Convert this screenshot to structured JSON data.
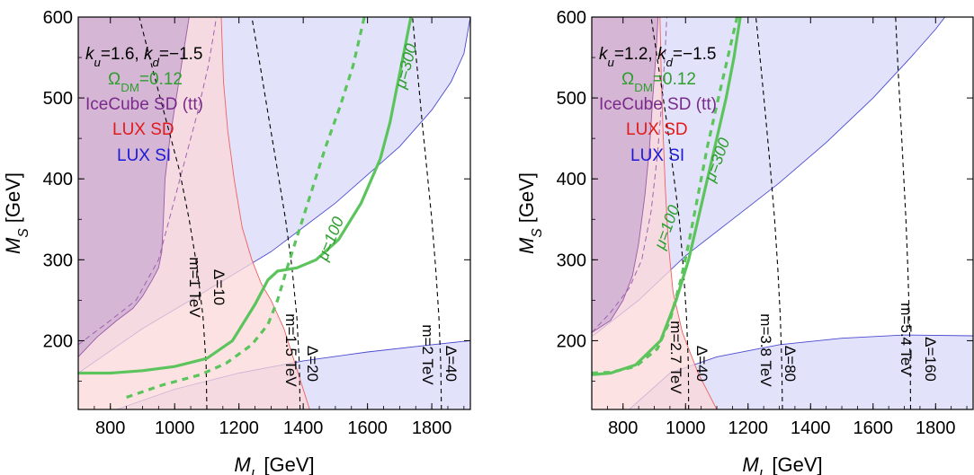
{
  "chart_data": [
    {
      "type": "line",
      "xlabel": "M_L [GeV]",
      "ylabel": "M_S [GeV]",
      "xlim": [
        700,
        1920
      ],
      "ylim": [
        115,
        600
      ],
      "xticks": [
        "800",
        "1000",
        "1200",
        "1400",
        "1600",
        "1800"
      ],
      "yticks": [
        "200",
        "300",
        "400",
        "500",
        "600"
      ],
      "grid": false,
      "legend": {
        "position": "top-left",
        "entries": [
          {
            "text": "k_u=1.6, k_d=−1.5",
            "color": "#000000"
          },
          {
            "text": "Ω_DM=0.12",
            "color": "#2e9e2e"
          },
          {
            "text": "IceCube SD (tt)",
            "color": "#7a2a8a"
          },
          {
            "text": "LUX SD",
            "color": "#e11a1a"
          },
          {
            "text": "LUX SI",
            "color": "#1a1ad6"
          }
        ]
      },
      "regions": {
        "icecube_sd": [
          [
            700,
            180
          ],
          [
            760,
            205
          ],
          [
            820,
            225
          ],
          [
            870,
            240
          ],
          [
            900,
            255
          ],
          [
            930,
            275
          ],
          [
            950,
            290
          ],
          [
            960,
            310
          ],
          [
            965,
            350
          ],
          [
            970,
            400
          ],
          [
            985,
            450
          ],
          [
            1005,
            500
          ],
          [
            1025,
            550
          ],
          [
            1045,
            600
          ],
          [
            700,
            600
          ]
        ],
        "lux_sd": [
          [
            700,
            115
          ],
          [
            1420,
            115
          ],
          [
            1380,
            165
          ],
          [
            1340,
            215
          ],
          [
            1300,
            250
          ],
          [
            1270,
            270
          ],
          [
            1240,
            300
          ],
          [
            1210,
            340
          ],
          [
            1185,
            400
          ],
          [
            1165,
            460
          ],
          [
            1152,
            520
          ],
          [
            1145,
            600
          ],
          [
            700,
            600
          ]
        ],
        "lux_si_upper": [
          [
            700,
            160
          ],
          [
            900,
            215
          ],
          [
            1100,
            262
          ],
          [
            1300,
            310
          ],
          [
            1500,
            370
          ],
          [
            1700,
            440
          ],
          [
            1800,
            485
          ],
          [
            1860,
            520
          ],
          [
            1900,
            555
          ],
          [
            1920,
            600
          ],
          [
            700,
            600
          ]
        ],
        "lux_si_lower": [
          [
            820,
            115
          ],
          [
            1000,
            140
          ],
          [
            1200,
            160
          ],
          [
            1400,
            175
          ],
          [
            1600,
            186
          ],
          [
            1800,
            195
          ],
          [
            1920,
            200
          ],
          [
            1920,
            115
          ]
        ]
      },
      "series": [
        {
          "name": "m=1 TeV",
          "style": "dashed",
          "color": "#000000",
          "points": [
            [
              1100,
              115
            ],
            [
              1098,
              170
            ],
            [
              1088,
              230
            ],
            [
              1070,
              290
            ],
            [
              1045,
              350
            ],
            [
              1015,
              410
            ],
            [
              975,
              470
            ],
            [
              935,
              530
            ],
            [
              890,
              600
            ]
          ]
        },
        {
          "name": "m=1.5 TeV",
          "style": "dashed",
          "color": "#000000",
          "points": [
            [
              1390,
              115
            ],
            [
              1388,
              170
            ],
            [
              1380,
              230
            ],
            [
              1365,
              290
            ],
            [
              1345,
              350
            ],
            [
              1320,
              410
            ],
            [
              1295,
              470
            ],
            [
              1268,
              535
            ],
            [
              1240,
              600
            ]
          ]
        },
        {
          "name": "m=2 TeV",
          "style": "dashed",
          "color": "#000000",
          "points": [
            [
              1830,
              115
            ],
            [
              1828,
              170
            ],
            [
              1822,
              230
            ],
            [
              1812,
              290
            ],
            [
              1800,
              350
            ],
            [
              1785,
              410
            ],
            [
              1770,
              470
            ],
            [
              1755,
              535
            ],
            [
              1740,
              600
            ]
          ]
        },
        {
          "name": "IceCube SD boundary",
          "style": "thin",
          "color": "#a060b0",
          "points": [
            [
              700,
              195
            ],
            [
              800,
              225
            ],
            [
              880,
              250
            ],
            [
              950,
              300
            ],
            [
              990,
              360
            ],
            [
              1030,
              420
            ],
            [
              1070,
              480
            ],
            [
              1105,
              540
            ],
            [
              1130,
              600
            ]
          ]
        },
        {
          "name": "μ=300",
          "style": "solid",
          "color": "#5cc45c",
          "points": [
            [
              700,
              160
            ],
            [
              800,
              160
            ],
            [
              900,
              163
            ],
            [
              1000,
              168
            ],
            [
              1100,
              178
            ],
            [
              1180,
              200
            ],
            [
              1250,
              245
            ],
            [
              1290,
              275
            ],
            [
              1320,
              286
            ],
            [
              1380,
              290
            ],
            [
              1440,
              300
            ],
            [
              1510,
              325
            ],
            [
              1580,
              370
            ],
            [
              1640,
              425
            ],
            [
              1670,
              470
            ],
            [
              1690,
              510
            ],
            [
              1710,
              550
            ],
            [
              1730,
              590
            ],
            [
              1735,
              600
            ]
          ]
        },
        {
          "name": "μ=100",
          "style": "dashed",
          "color": "#5cc45c",
          "points": [
            [
              850,
              130
            ],
            [
              960,
              145
            ],
            [
              1080,
              158
            ],
            [
              1160,
              172
            ],
            [
              1240,
              195
            ],
            [
              1290,
              220
            ],
            [
              1320,
              250
            ],
            [
              1350,
              290
            ],
            [
              1390,
              340
            ],
            [
              1430,
              390
            ],
            [
              1470,
              440
            ],
            [
              1515,
              490
            ],
            [
              1555,
              540
            ],
            [
              1590,
              600
            ]
          ]
        }
      ],
      "annotations": [
        {
          "text": "m=1 TeV",
          "color": "#000000"
        },
        {
          "text": "Δ=10",
          "color": "#000000"
        },
        {
          "text": "m=1.5 TeV",
          "color": "#000000"
        },
        {
          "text": "Δ=20",
          "color": "#000000"
        },
        {
          "text": "m=2 TeV",
          "color": "#000000"
        },
        {
          "text": "Δ=40",
          "color": "#000000"
        },
        {
          "text": "μ=100",
          "color": "#2e9e2e"
        },
        {
          "text": "μ=300",
          "color": "#2e9e2e"
        }
      ]
    },
    {
      "type": "line",
      "xlabel": "M_L [GeV]",
      "ylabel": "M_S [GeV]",
      "xlim": [
        700,
        1920
      ],
      "ylim": [
        115,
        600
      ],
      "xticks": [
        "800",
        "1000",
        "1200",
        "1400",
        "1600",
        "1800"
      ],
      "yticks": [
        "200",
        "300",
        "400",
        "500",
        "600"
      ],
      "grid": false,
      "legend": {
        "position": "top-left",
        "entries": [
          {
            "text": "k_u=1.2, k_d=−1.5",
            "color": "#000000"
          },
          {
            "text": "Ω_DM=0.12",
            "color": "#2e9e2e"
          },
          {
            "text": "IceCube SD (tt)",
            "color": "#7a2a8a"
          },
          {
            "text": "LUX SD",
            "color": "#e11a1a"
          },
          {
            "text": "LUX SI",
            "color": "#1a1ad6"
          }
        ]
      },
      "regions": {
        "icecube_sd": [
          [
            700,
            210
          ],
          [
            760,
            225
          ],
          [
            800,
            250
          ],
          [
            830,
            280
          ],
          [
            850,
            320
          ],
          [
            870,
            380
          ],
          [
            885,
            440
          ],
          [
            895,
            500
          ],
          [
            905,
            550
          ],
          [
            912,
            600
          ],
          [
            700,
            600
          ]
        ],
        "lux_sd": [
          [
            700,
            115
          ],
          [
            1100,
            115
          ],
          [
            1040,
            160
          ],
          [
            990,
            210
          ],
          [
            960,
            260
          ],
          [
            945,
            320
          ],
          [
            935,
            390
          ],
          [
            928,
            460
          ],
          [
            922,
            530
          ],
          [
            918,
            600
          ],
          [
            700,
            600
          ]
        ],
        "lux_si_upper": [
          [
            700,
            205
          ],
          [
            850,
            250
          ],
          [
            1000,
            305
          ],
          [
            1150,
            350
          ],
          [
            1300,
            395
          ],
          [
            1450,
            445
          ],
          [
            1600,
            500
          ],
          [
            1720,
            550
          ],
          [
            1800,
            585
          ],
          [
            1830,
            600
          ],
          [
            700,
            600
          ]
        ],
        "lux_si_lower": [
          [
            820,
            115
          ],
          [
            950,
            160
          ],
          [
            1100,
            180
          ],
          [
            1300,
            195
          ],
          [
            1500,
            203
          ],
          [
            1700,
            207
          ],
          [
            1920,
            206
          ],
          [
            1920,
            115
          ]
        ]
      },
      "series": [
        {
          "name": "m=2.7 TeV",
          "style": "dashed",
          "color": "#000000",
          "points": [
            [
              1010,
              115
            ],
            [
              1009,
              170
            ],
            [
              1003,
              230
            ],
            [
              993,
              290
            ],
            [
              980,
              350
            ],
            [
              960,
              410
            ],
            [
              940,
              470
            ],
            [
              915,
              535
            ],
            [
              890,
              600
            ]
          ]
        },
        {
          "name": "m=3.8 TeV",
          "style": "dashed",
          "color": "#000000",
          "points": [
            [
              1310,
              115
            ],
            [
              1308,
              170
            ],
            [
              1303,
              230
            ],
            [
              1295,
              290
            ],
            [
              1285,
              350
            ],
            [
              1272,
              410
            ],
            [
              1258,
              470
            ],
            [
              1242,
              535
            ],
            [
              1225,
              600
            ]
          ]
        },
        {
          "name": "m=5.4 TeV",
          "style": "dashed",
          "color": "#000000",
          "points": [
            [
              1720,
              115
            ],
            [
              1719,
              170
            ],
            [
              1716,
              230
            ],
            [
              1711,
              290
            ],
            [
              1705,
              350
            ],
            [
              1697,
              410
            ],
            [
              1689,
              470
            ],
            [
              1680,
              535
            ],
            [
              1672,
              600
            ]
          ]
        },
        {
          "name": "IceCube SD boundary",
          "style": "thin",
          "color": "#a060b0",
          "points": [
            [
              700,
              210
            ],
            [
              760,
              235
            ],
            [
              820,
              265
            ],
            [
              860,
              300
            ],
            [
              890,
              360
            ],
            [
              910,
              430
            ],
            [
              925,
              500
            ],
            [
              935,
              560
            ],
            [
              940,
              600
            ]
          ]
        },
        {
          "name": "μ=300",
          "style": "solid",
          "color": "#5cc45c",
          "points": [
            [
              700,
              158
            ],
            [
              760,
              160
            ],
            [
              840,
              170
            ],
            [
              920,
              200
            ],
            [
              970,
              250
            ],
            [
              1010,
              300
            ],
            [
              1040,
              350
            ],
            [
              1070,
              400
            ],
            [
              1100,
              450
            ],
            [
              1130,
              500
            ],
            [
              1155,
              550
            ],
            [
              1175,
              600
            ]
          ]
        },
        {
          "name": "μ=100",
          "style": "dashed",
          "color": "#5cc45c",
          "points": [
            [
              700,
              160
            ],
            [
              760,
              161
            ],
            [
              840,
              168
            ],
            [
              910,
              190
            ],
            [
              950,
              225
            ],
            [
              985,
              275
            ],
            [
              1010,
              320
            ],
            [
              1040,
              380
            ],
            [
              1070,
              440
            ],
            [
              1105,
              500
            ],
            [
              1135,
              550
            ],
            [
              1165,
              600
            ]
          ]
        }
      ],
      "annotations": [
        {
          "text": "m=2.7 TeV",
          "color": "#000000"
        },
        {
          "text": "Δ=40",
          "color": "#000000"
        },
        {
          "text": "m=3.8 TeV",
          "color": "#000000"
        },
        {
          "text": "Δ=80",
          "color": "#000000"
        },
        {
          "text": "m=5.4 TeV",
          "color": "#000000"
        },
        {
          "text": "Δ=160",
          "color": "#000000"
        },
        {
          "text": "μ=100",
          "color": "#2e9e2e"
        },
        {
          "text": "μ=300",
          "color": "#2e9e2e"
        }
      ]
    }
  ],
  "colors": {
    "icecube_fill": "#c9a6d0",
    "icecube_text": "#7a2a8a",
    "lux_sd_fill": "#fbd8d8",
    "lux_sd_line": "#f06060",
    "lux_sd_text": "#e11a1a",
    "lux_si_fill": "#d8daf8",
    "lux_si_line": "#4a4ad0",
    "lux_si_text": "#1a1ad6",
    "relic_line": "#5cc45c",
    "relic_text": "#2e9e2e"
  }
}
